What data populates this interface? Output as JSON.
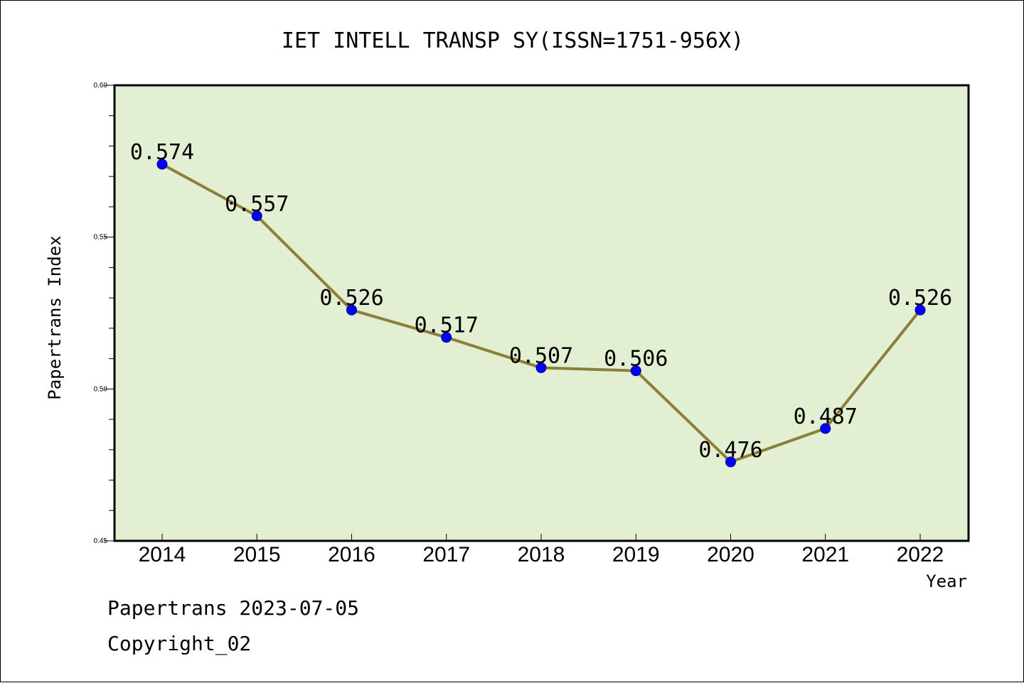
{
  "colors": {
    "plot_background": "#e2efd3",
    "line": "#8c7f3a",
    "marker": "#0000ff",
    "frame": "#000000"
  },
  "chart_data": {
    "type": "line",
    "title": "IET INTELL TRANSP SY(ISSN=1751-956X)",
    "xlabel": "Year",
    "ylabel": "Papertrans Index",
    "categories": [
      "2014",
      "2015",
      "2016",
      "2017",
      "2018",
      "2019",
      "2020",
      "2021",
      "2022"
    ],
    "series": [
      {
        "values": [
          0.574,
          0.557,
          0.526,
          0.517,
          0.507,
          0.506,
          0.476,
          0.487,
          0.526
        ],
        "labels": [
          "0.574",
          "0.557",
          "0.526",
          "0.517",
          "0.507",
          "0.506",
          "0.476",
          "0.487",
          "0.526"
        ]
      }
    ],
    "ylim": [
      0.45,
      0.6
    ],
    "yticks": [
      "0.45",
      "0.50",
      "0.55",
      "0.60"
    ],
    "grid": false,
    "legend": "none"
  },
  "footer": {
    "line1": "Papertrans 2023-07-05",
    "line2": "Copyright_02"
  }
}
